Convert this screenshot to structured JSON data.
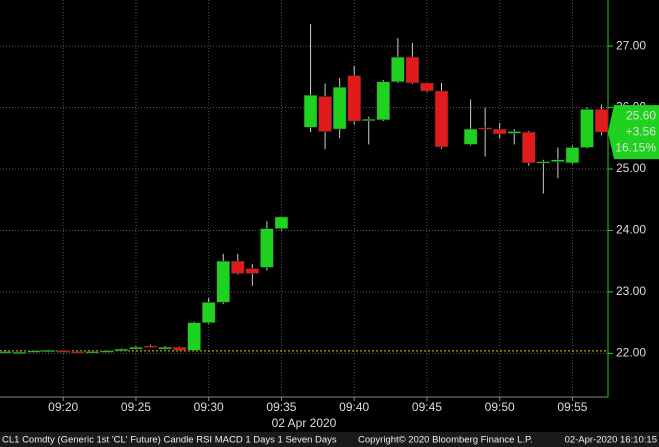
{
  "chart_data": {
    "type": "candlestick",
    "categories": [
      null,
      null,
      null,
      null,
      "09:20",
      null,
      null,
      null,
      null,
      "09:25",
      null,
      null,
      null,
      null,
      "09:30",
      null,
      null,
      null,
      null,
      "09:35",
      null,
      null,
      null,
      null,
      "09:40",
      null,
      null,
      null,
      null,
      "09:45",
      null,
      null,
      null,
      null,
      "09:50",
      null,
      null,
      null,
      null,
      "09:55",
      null,
      null
    ],
    "open": [
      22.02,
      22.02,
      22.03,
      22.03,
      22.04,
      22.03,
      22.02,
      22.03,
      22.04,
      22.07,
      22.12,
      22.07,
      22.1,
      22.05,
      22.5,
      22.83,
      23.5,
      23.38,
      23.4,
      24.03,
      null,
      25.68,
      26.18,
      25.65,
      26.52,
      25.8,
      25.8,
      26.42,
      26.82,
      26.4,
      26.27,
      null,
      25.4,
      25.67,
      25.65,
      25.58,
      25.6,
      25.1,
      25.12,
      25.1,
      25.35,
      25.97
    ],
    "high": [
      22.05,
      22.03,
      22.05,
      22.06,
      22.05,
      22.04,
      22.04,
      22.05,
      22.08,
      22.12,
      22.14,
      22.12,
      22.11,
      22.52,
      22.9,
      23.62,
      23.62,
      23.45,
      24.15,
      24.22,
      null,
      27.36,
      26.39,
      26.48,
      26.68,
      25.85,
      26.45,
      27.13,
      27.05,
      26.4,
      26.4,
      null,
      26.13,
      26.0,
      25.75,
      25.65,
      25.62,
      25.15,
      25.35,
      25.38,
      26.0,
      26.05
    ],
    "low": [
      22.0,
      22.01,
      22.02,
      22.02,
      22.02,
      22.01,
      22.01,
      22.02,
      22.03,
      22.06,
      22.09,
      22.06,
      22.04,
      22.04,
      22.48,
      22.8,
      23.28,
      23.1,
      23.35,
      24.0,
      null,
      25.6,
      25.32,
      25.5,
      25.72,
      25.4,
      25.78,
      26.4,
      26.38,
      26.25,
      25.33,
      null,
      25.38,
      25.2,
      25.5,
      25.4,
      25.05,
      24.6,
      24.85,
      25.08,
      25.33,
      25.55
    ],
    "close": [
      22.03,
      22.02,
      22.04,
      22.05,
      22.03,
      22.02,
      22.03,
      22.04,
      22.07,
      22.1,
      22.1,
      22.1,
      22.05,
      22.5,
      22.83,
      23.5,
      23.3,
      23.3,
      24.03,
      24.22,
      null,
      26.2,
      25.61,
      26.33,
      25.78,
      25.81,
      26.42,
      26.82,
      26.4,
      26.27,
      25.36,
      null,
      25.65,
      25.65,
      25.57,
      25.61,
      25.1,
      25.12,
      25.15,
      25.35,
      25.97,
      25.6
    ],
    "up_color": "#1fd21f",
    "down_color": "#e01b1b",
    "ylim": [
      21.29,
      27.75
    ],
    "yticks": [
      {
        "value": 22,
        "label": "22.00"
      },
      {
        "value": 23,
        "label": "23.00"
      },
      {
        "value": 24,
        "label": "24.00"
      },
      {
        "value": 25,
        "label": "25.00"
      },
      {
        "value": 26,
        "label": "26.00"
      },
      {
        "value": 27,
        "label": "27.00"
      }
    ],
    "grid": true,
    "reference_line": 22.04,
    "last_price": {
      "values": [
        25.6,
        3.56,
        16.15
      ],
      "value_labels": [
        "25.60",
        "+3.56",
        "16.15%"
      ]
    },
    "date_label": "02 Apr 2020",
    "footer": {
      "left": "CL1 Comdty (Generic 1st 'CL' Future) Candle RSI MACD 1 Days 1 Seven Days",
      "center": "Copyright© 2020 Bloomberg Finance L.P.",
      "right": "02-Apr-2020 16:10:15"
    }
  }
}
